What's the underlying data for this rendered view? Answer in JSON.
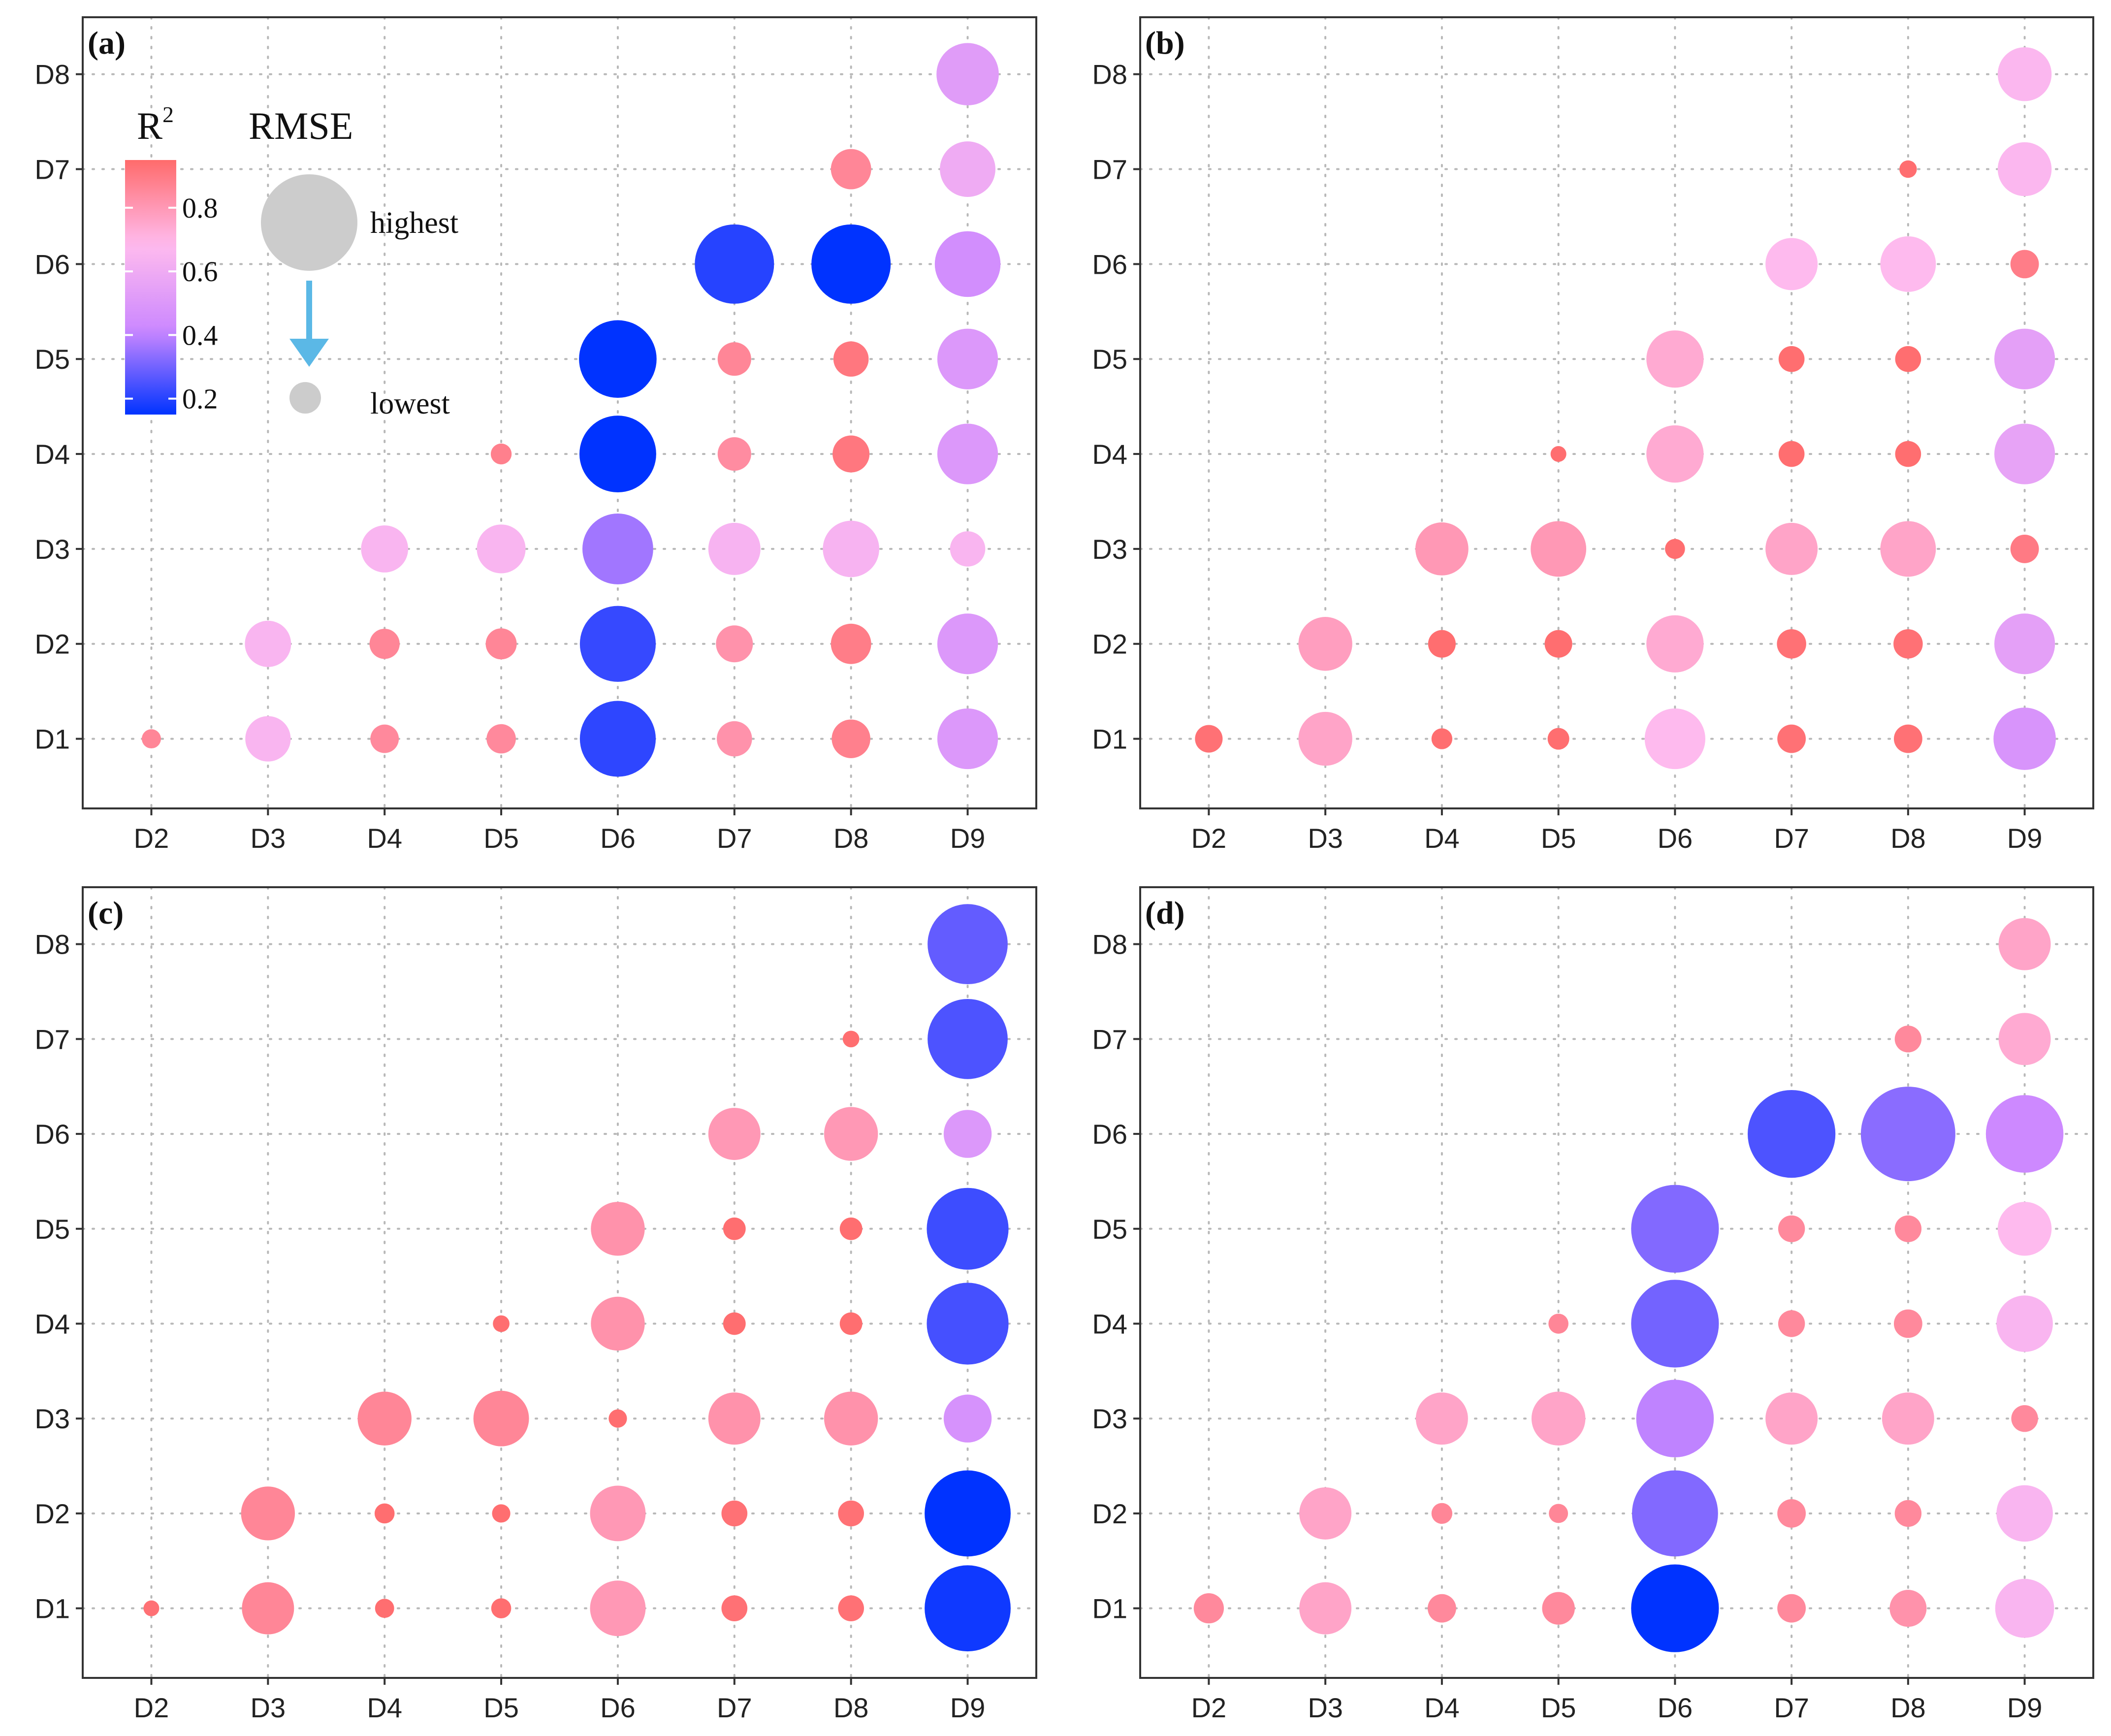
{
  "chart_data": {
    "type": "scatter",
    "encoding": "bubble: color = R2, size = RMSE",
    "x_categories": [
      "D2",
      "D3",
      "D4",
      "D5",
      "D6",
      "D7",
      "D8",
      "D9"
    ],
    "y_categories": [
      "D1",
      "D2",
      "D3",
      "D4",
      "D5",
      "D6",
      "D7",
      "D8"
    ],
    "legend": {
      "color_title": "R",
      "color_title_sup": "2",
      "color_ticks": [
        "0.2",
        "0.4",
        "0.6",
        "0.8"
      ],
      "color_range": [
        0.15,
        0.95
      ],
      "color_stops": [
        "#0033ff",
        "#cc88ff",
        "#ffbbee",
        "#ff6b6b"
      ],
      "size_title": "RMSE",
      "size_high_label": "highest",
      "size_low_label": "lowest",
      "size_swatch_color": "#cccccc",
      "arrow_color": "#5bb8e6",
      "placement": "top-left of panel (a)"
    },
    "panels": [
      {
        "label": "(a)",
        "points": [
          {
            "x": "D2",
            "y": "D1",
            "r2": 0.86,
            "rmse": 0.11
          },
          {
            "x": "D3",
            "y": "D1",
            "r2": 0.65,
            "rmse": 0.42
          },
          {
            "x": "D3",
            "y": "D2",
            "r2": 0.65,
            "rmse": 0.43
          },
          {
            "x": "D4",
            "y": "D1",
            "r2": 0.85,
            "rmse": 0.22
          },
          {
            "x": "D4",
            "y": "D2",
            "r2": 0.86,
            "rmse": 0.24
          },
          {
            "x": "D4",
            "y": "D3",
            "r2": 0.65,
            "rmse": 0.44
          },
          {
            "x": "D5",
            "y": "D1",
            "r2": 0.85,
            "rmse": 0.23
          },
          {
            "x": "D5",
            "y": "D2",
            "r2": 0.86,
            "rmse": 0.25
          },
          {
            "x": "D5",
            "y": "D3",
            "r2": 0.65,
            "rmse": 0.46
          },
          {
            "x": "D5",
            "y": "D4",
            "r2": 0.88,
            "rmse": 0.13
          },
          {
            "x": "D6",
            "y": "D1",
            "r2": 0.21,
            "rmse": 0.78
          },
          {
            "x": "D6",
            "y": "D2",
            "r2": 0.22,
            "rmse": 0.78
          },
          {
            "x": "D6",
            "y": "D3",
            "r2": 0.36,
            "rmse": 0.72
          },
          {
            "x": "D6",
            "y": "D4",
            "r2": 0.15,
            "rmse": 0.79
          },
          {
            "x": "D6",
            "y": "D5",
            "r2": 0.15,
            "rmse": 0.8
          },
          {
            "x": "D7",
            "y": "D1",
            "r2": 0.82,
            "rmse": 0.3
          },
          {
            "x": "D7",
            "y": "D2",
            "r2": 0.82,
            "rmse": 0.32
          },
          {
            "x": "D7",
            "y": "D3",
            "r2": 0.64,
            "rmse": 0.5
          },
          {
            "x": "D7",
            "y": "D4",
            "r2": 0.84,
            "rmse": 0.28
          },
          {
            "x": "D7",
            "y": "D5",
            "r2": 0.86,
            "rmse": 0.28
          },
          {
            "x": "D7",
            "y": "D6",
            "r2": 0.2,
            "rmse": 0.82
          },
          {
            "x": "D8",
            "y": "D1",
            "r2": 0.88,
            "rmse": 0.34
          },
          {
            "x": "D8",
            "y": "D2",
            "r2": 0.89,
            "rmse": 0.36
          },
          {
            "x": "D8",
            "y": "D3",
            "r2": 0.64,
            "rmse": 0.55
          },
          {
            "x": "D8",
            "y": "D4",
            "r2": 0.91,
            "rmse": 0.32
          },
          {
            "x": "D8",
            "y": "D5",
            "r2": 0.91,
            "rmse": 0.3
          },
          {
            "x": "D8",
            "y": "D6",
            "r2": 0.15,
            "rmse": 0.82
          },
          {
            "x": "D8",
            "y": "D7",
            "r2": 0.86,
            "rmse": 0.36
          },
          {
            "x": "D9",
            "y": "D1",
            "r2": 0.5,
            "rmse": 0.6
          },
          {
            "x": "D9",
            "y": "D2",
            "r2": 0.5,
            "rmse": 0.6
          },
          {
            "x": "D9",
            "y": "D3",
            "r2": 0.65,
            "rmse": 0.3
          },
          {
            "x": "D9",
            "y": "D4",
            "r2": 0.5,
            "rmse": 0.6
          },
          {
            "x": "D9",
            "y": "D5",
            "r2": 0.5,
            "rmse": 0.6
          },
          {
            "x": "D9",
            "y": "D6",
            "r2": 0.45,
            "rmse": 0.66
          },
          {
            "x": "D9",
            "y": "D7",
            "r2": 0.6,
            "rmse": 0.54
          },
          {
            "x": "D9",
            "y": "D8",
            "r2": 0.52,
            "rmse": 0.62
          }
        ]
      },
      {
        "label": "(b)",
        "points": [
          {
            "x": "D2",
            "y": "D1",
            "r2": 0.93,
            "rmse": 0.21
          },
          {
            "x": "D3",
            "y": "D1",
            "r2": 0.76,
            "rmse": 0.52
          },
          {
            "x": "D3",
            "y": "D2",
            "r2": 0.78,
            "rmse": 0.52
          },
          {
            "x": "D4",
            "y": "D1",
            "r2": 0.94,
            "rmse": 0.13
          },
          {
            "x": "D4",
            "y": "D2",
            "r2": 0.94,
            "rmse": 0.21
          },
          {
            "x": "D4",
            "y": "D3",
            "r2": 0.8,
            "rmse": 0.51
          },
          {
            "x": "D5",
            "y": "D1",
            "r2": 0.94,
            "rmse": 0.14
          },
          {
            "x": "D5",
            "y": "D2",
            "r2": 0.94,
            "rmse": 0.21
          },
          {
            "x": "D5",
            "y": "D3",
            "r2": 0.8,
            "rmse": 0.54
          },
          {
            "x": "D5",
            "y": "D4",
            "r2": 0.94,
            "rmse": 0.07
          },
          {
            "x": "D6",
            "y": "D1",
            "r2": 0.68,
            "rmse": 0.6
          },
          {
            "x": "D6",
            "y": "D2",
            "r2": 0.74,
            "rmse": 0.56
          },
          {
            "x": "D6",
            "y": "D3",
            "r2": 0.94,
            "rmse": 0.12
          },
          {
            "x": "D6",
            "y": "D4",
            "r2": 0.74,
            "rmse": 0.56
          },
          {
            "x": "D6",
            "y": "D5",
            "r2": 0.74,
            "rmse": 0.56
          },
          {
            "x": "D7",
            "y": "D1",
            "r2": 0.93,
            "rmse": 0.22
          },
          {
            "x": "D7",
            "y": "D2",
            "r2": 0.93,
            "rmse": 0.23
          },
          {
            "x": "D7",
            "y": "D3",
            "r2": 0.76,
            "rmse": 0.5
          },
          {
            "x": "D7",
            "y": "D4",
            "r2": 0.94,
            "rmse": 0.19
          },
          {
            "x": "D7",
            "y": "D5",
            "r2": 0.94,
            "rmse": 0.19
          },
          {
            "x": "D7",
            "y": "D6",
            "r2": 0.68,
            "rmse": 0.5
          },
          {
            "x": "D8",
            "y": "D1",
            "r2": 0.93,
            "rmse": 0.22
          },
          {
            "x": "D8",
            "y": "D2",
            "r2": 0.93,
            "rmse": 0.23
          },
          {
            "x": "D8",
            "y": "D3",
            "r2": 0.76,
            "rmse": 0.54
          },
          {
            "x": "D8",
            "y": "D4",
            "r2": 0.94,
            "rmse": 0.19
          },
          {
            "x": "D8",
            "y": "D5",
            "r2": 0.94,
            "rmse": 0.19
          },
          {
            "x": "D8",
            "y": "D6",
            "r2": 0.68,
            "rmse": 0.54
          },
          {
            "x": "D8",
            "y": "D7",
            "r2": 0.94,
            "rmse": 0.09
          },
          {
            "x": "D9",
            "y": "D1",
            "r2": 0.48,
            "rmse": 0.62
          },
          {
            "x": "D9",
            "y": "D2",
            "r2": 0.54,
            "rmse": 0.6
          },
          {
            "x": "D9",
            "y": "D3",
            "r2": 0.9,
            "rmse": 0.22
          },
          {
            "x": "D9",
            "y": "D4",
            "r2": 0.56,
            "rmse": 0.6
          },
          {
            "x": "D9",
            "y": "D5",
            "r2": 0.54,
            "rmse": 0.6
          },
          {
            "x": "D9",
            "y": "D6",
            "r2": 0.89,
            "rmse": 0.22
          },
          {
            "x": "D9",
            "y": "D7",
            "r2": 0.66,
            "rmse": 0.52
          },
          {
            "x": "D9",
            "y": "D8",
            "r2": 0.66,
            "rmse": 0.52
          }
        ]
      },
      {
        "label": "(c)",
        "points": [
          {
            "x": "D2",
            "y": "D1",
            "r2": 0.93,
            "rmse": 0.07
          },
          {
            "x": "D3",
            "y": "D1",
            "r2": 0.86,
            "rmse": 0.5
          },
          {
            "x": "D3",
            "y": "D2",
            "r2": 0.86,
            "rmse": 0.52
          },
          {
            "x": "D4",
            "y": "D1",
            "r2": 0.94,
            "rmse": 0.11
          },
          {
            "x": "D4",
            "y": "D2",
            "r2": 0.94,
            "rmse": 0.12
          },
          {
            "x": "D4",
            "y": "D3",
            "r2": 0.86,
            "rmse": 0.52
          },
          {
            "x": "D5",
            "y": "D1",
            "r2": 0.94,
            "rmse": 0.12
          },
          {
            "x": "D5",
            "y": "D2",
            "r2": 0.94,
            "rmse": 0.1
          },
          {
            "x": "D5",
            "y": "D3",
            "r2": 0.86,
            "rmse": 0.54
          },
          {
            "x": "D5",
            "y": "D4",
            "r2": 0.94,
            "rmse": 0.08
          },
          {
            "x": "D6",
            "y": "D1",
            "r2": 0.8,
            "rmse": 0.54
          },
          {
            "x": "D6",
            "y": "D2",
            "r2": 0.8,
            "rmse": 0.54
          },
          {
            "x": "D6",
            "y": "D3",
            "r2": 0.94,
            "rmse": 0.1
          },
          {
            "x": "D6",
            "y": "D4",
            "r2": 0.82,
            "rmse": 0.52
          },
          {
            "x": "D6",
            "y": "D5",
            "r2": 0.82,
            "rmse": 0.52
          },
          {
            "x": "D7",
            "y": "D1",
            "r2": 0.93,
            "rmse": 0.19
          },
          {
            "x": "D7",
            "y": "D2",
            "r2": 0.93,
            "rmse": 0.19
          },
          {
            "x": "D7",
            "y": "D3",
            "r2": 0.82,
            "rmse": 0.5
          },
          {
            "x": "D7",
            "y": "D4",
            "r2": 0.94,
            "rmse": 0.15
          },
          {
            "x": "D7",
            "y": "D5",
            "r2": 0.94,
            "rmse": 0.15
          },
          {
            "x": "D7",
            "y": "D6",
            "r2": 0.8,
            "rmse": 0.5
          },
          {
            "x": "D8",
            "y": "D1",
            "r2": 0.93,
            "rmse": 0.19
          },
          {
            "x": "D8",
            "y": "D2",
            "r2": 0.93,
            "rmse": 0.19
          },
          {
            "x": "D8",
            "y": "D3",
            "r2": 0.82,
            "rmse": 0.52
          },
          {
            "x": "D8",
            "y": "D4",
            "r2": 0.94,
            "rmse": 0.15
          },
          {
            "x": "D8",
            "y": "D5",
            "r2": 0.94,
            "rmse": 0.15
          },
          {
            "x": "D8",
            "y": "D6",
            "r2": 0.8,
            "rmse": 0.52
          },
          {
            "x": "D8",
            "y": "D7",
            "r2": 0.94,
            "rmse": 0.08
          },
          {
            "x": "D9",
            "y": "D1",
            "r2": 0.17,
            "rmse": 0.9
          },
          {
            "x": "D9",
            "y": "D2",
            "r2": 0.15,
            "rmse": 0.9
          },
          {
            "x": "D9",
            "y": "D3",
            "r2": 0.47,
            "rmse": 0.45
          },
          {
            "x": "D9",
            "y": "D4",
            "r2": 0.24,
            "rmse": 0.85
          },
          {
            "x": "D9",
            "y": "D5",
            "r2": 0.23,
            "rmse": 0.85
          },
          {
            "x": "D9",
            "y": "D6",
            "r2": 0.5,
            "rmse": 0.45
          },
          {
            "x": "D9",
            "y": "D7",
            "r2": 0.25,
            "rmse": 0.83
          },
          {
            "x": "D9",
            "y": "D8",
            "r2": 0.28,
            "rmse": 0.83
          }
        ]
      },
      {
        "label": "(d)",
        "points": [
          {
            "x": "D2",
            "y": "D1",
            "r2": 0.85,
            "rmse": 0.24
          },
          {
            "x": "D3",
            "y": "D1",
            "r2": 0.76,
            "rmse": 0.5
          },
          {
            "x": "D3",
            "y": "D2",
            "r2": 0.76,
            "rmse": 0.5
          },
          {
            "x": "D4",
            "y": "D1",
            "r2": 0.85,
            "rmse": 0.22
          },
          {
            "x": "D4",
            "y": "D2",
            "r2": 0.86,
            "rmse": 0.13
          },
          {
            "x": "D4",
            "y": "D3",
            "r2": 0.76,
            "rmse": 0.5
          },
          {
            "x": "D5",
            "y": "D1",
            "r2": 0.85,
            "rmse": 0.27
          },
          {
            "x": "D5",
            "y": "D2",
            "r2": 0.86,
            "rmse": 0.11
          },
          {
            "x": "D5",
            "y": "D3",
            "r2": 0.76,
            "rmse": 0.52
          },
          {
            "x": "D5",
            "y": "D4",
            "r2": 0.86,
            "rmse": 0.12
          },
          {
            "x": "D6",
            "y": "D1",
            "r2": 0.15,
            "rmse": 0.92
          },
          {
            "x": "D6",
            "y": "D2",
            "r2": 0.32,
            "rmse": 0.9
          },
          {
            "x": "D6",
            "y": "D3",
            "r2": 0.4,
            "rmse": 0.8
          },
          {
            "x": "D6",
            "y": "D4",
            "r2": 0.3,
            "rmse": 0.92
          },
          {
            "x": "D6",
            "y": "D5",
            "r2": 0.32,
            "rmse": 0.92
          },
          {
            "x": "D7",
            "y": "D1",
            "r2": 0.85,
            "rmse": 0.22
          },
          {
            "x": "D7",
            "y": "D2",
            "r2": 0.85,
            "rmse": 0.22
          },
          {
            "x": "D7",
            "y": "D3",
            "r2": 0.76,
            "rmse": 0.5
          },
          {
            "x": "D7",
            "y": "D4",
            "r2": 0.85,
            "rmse": 0.2
          },
          {
            "x": "D7",
            "y": "D5",
            "r2": 0.85,
            "rmse": 0.2
          },
          {
            "x": "D7",
            "y": "D6",
            "r2": 0.25,
            "rmse": 0.92
          },
          {
            "x": "D8",
            "y": "D1",
            "r2": 0.82,
            "rmse": 0.32
          },
          {
            "x": "D8",
            "y": "D2",
            "r2": 0.85,
            "rmse": 0.2
          },
          {
            "x": "D8",
            "y": "D3",
            "r2": 0.76,
            "rmse": 0.5
          },
          {
            "x": "D8",
            "y": "D4",
            "r2": 0.85,
            "rmse": 0.22
          },
          {
            "x": "D8",
            "y": "D5",
            "r2": 0.85,
            "rmse": 0.2
          },
          {
            "x": "D8",
            "y": "D6",
            "r2": 0.33,
            "rmse": 1.0
          },
          {
            "x": "D8",
            "y": "D7",
            "r2": 0.85,
            "rmse": 0.2
          },
          {
            "x": "D9",
            "y": "D1",
            "r2": 0.65,
            "rmse": 0.58
          },
          {
            "x": "D9",
            "y": "D2",
            "r2": 0.65,
            "rmse": 0.55
          },
          {
            "x": "D9",
            "y": "D3",
            "r2": 0.85,
            "rmse": 0.2
          },
          {
            "x": "D9",
            "y": "D4",
            "r2": 0.65,
            "rmse": 0.55
          },
          {
            "x": "D9",
            "y": "D5",
            "r2": 0.68,
            "rmse": 0.52
          },
          {
            "x": "D9",
            "y": "D6",
            "r2": 0.42,
            "rmse": 0.8
          },
          {
            "x": "D9",
            "y": "D7",
            "r2": 0.74,
            "rmse": 0.5
          },
          {
            "x": "D9",
            "y": "D8",
            "r2": 0.76,
            "rmse": 0.5
          }
        ]
      }
    ]
  }
}
